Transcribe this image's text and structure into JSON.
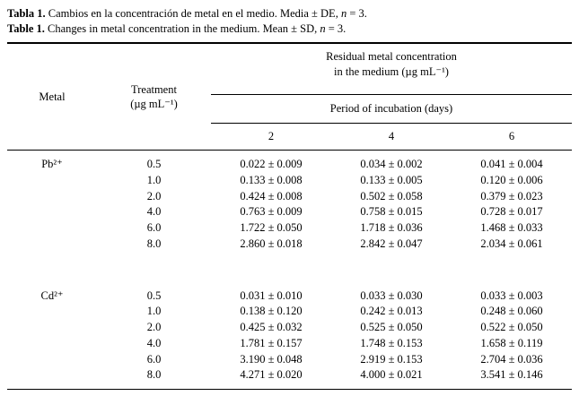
{
  "captions": {
    "es": {
      "label": "Tabla 1.",
      "text": "Cambios en la concentración de metal en el medio. Media ± DE,",
      "n": "n",
      "tail": "= 3."
    },
    "en": {
      "label": "Table 1.",
      "text": "Changes in metal concentration in the medium. Mean ± SD,",
      "n": "n",
      "tail": "= 3."
    }
  },
  "table": {
    "headers": {
      "metal": "Metal",
      "treatment": "Treatment\n(µg mL⁻¹)",
      "residual": "Residual metal concentration\nin the medium (µg mL⁻¹)",
      "period": "Period of incubation (days)",
      "days": [
        "2",
        "4",
        "6"
      ]
    },
    "groups": [
      {
        "metal": "Pb²⁺",
        "rows": [
          {
            "treatment": "0.5",
            "values": [
              "0.022 ± 0.009",
              "0.034 ± 0.002",
              "0.041 ± 0.004"
            ]
          },
          {
            "treatment": "1.0",
            "values": [
              "0.133 ± 0.008",
              "0.133 ± 0.005",
              "0.120 ± 0.006"
            ]
          },
          {
            "treatment": "2.0",
            "values": [
              "0.424 ± 0.008",
              "0.502 ± 0.058",
              "0.379 ± 0.023"
            ]
          },
          {
            "treatment": "4.0",
            "values": [
              "0.763 ± 0.009",
              "0.758 ± 0.015",
              "0.728 ± 0.017"
            ]
          },
          {
            "treatment": "6.0",
            "values": [
              "1.722 ± 0.050",
              "1.718 ± 0.036",
              "1.468 ± 0.033"
            ]
          },
          {
            "treatment": "8.0",
            "values": [
              "2.860 ± 0.018",
              "2.842 ± 0.047",
              "2.034 ± 0.061"
            ]
          }
        ]
      },
      {
        "metal": "Cd²⁺",
        "rows": [
          {
            "treatment": "0.5",
            "values": [
              "0.031 ± 0.010",
              "0.033 ± 0.030",
              "0.033 ± 0.003"
            ]
          },
          {
            "treatment": "1.0",
            "values": [
              "0.138 ± 0.120",
              "0.242 ± 0.013",
              "0.248 ± 0.060"
            ]
          },
          {
            "treatment": "2.0",
            "values": [
              "0.425 ± 0.032",
              "0.525 ± 0.050",
              "0.522 ± 0.050"
            ]
          },
          {
            "treatment": "4.0",
            "values": [
              "1.781 ± 0.157",
              "1.748 ± 0.153",
              "1.658 ± 0.119"
            ]
          },
          {
            "treatment": "6.0",
            "values": [
              "3.190 ± 0.048",
              "2.919 ± 0.153",
              "2.704 ± 0.036"
            ]
          },
          {
            "treatment": "8.0",
            "values": [
              "4.271 ± 0.020",
              "4.000 ± 0.021",
              "3.541 ± 0.146"
            ]
          }
        ]
      }
    ]
  }
}
